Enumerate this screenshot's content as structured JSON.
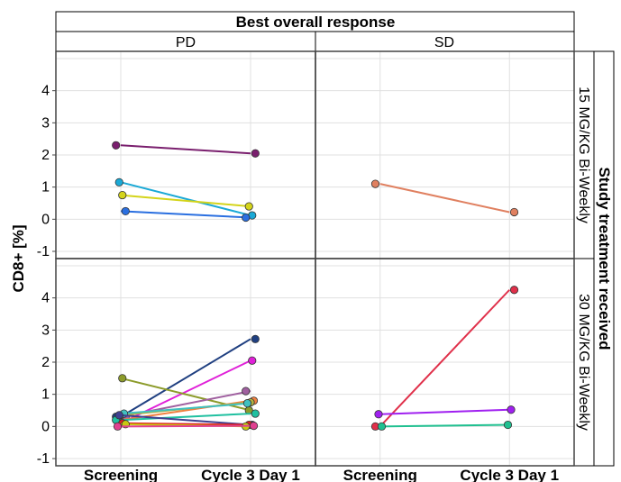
{
  "chart_data": {
    "type": "line",
    "title": "",
    "xlabel": "",
    "ylabel": "CD8+ [%]",
    "categories": [
      "Screening",
      "Cycle 3 Day 1"
    ],
    "ylim": [
      -1,
      5
    ],
    "y_ticks": [
      "-1",
      "0",
      "1",
      "2",
      "3",
      "4"
    ],
    "grid": true,
    "col_facet_title": "Best overall response",
    "col_levels": [
      "PD",
      "SD"
    ],
    "row_facet_title": "Study treatment received",
    "row_levels": [
      "15 MG/KG Bi-Weekly",
      "30 MG/KG Bi-Weekly"
    ],
    "panels": [
      {
        "col": "PD",
        "row": "15 MG/KG Bi-Weekly",
        "subjects": [
          {
            "color": "#7a1f6e",
            "values": [
              2.3,
              2.05
            ]
          },
          {
            "color": "#1aa9d6",
            "values": [
              1.15,
              0.12
            ]
          },
          {
            "color": "#d4d41a",
            "values": [
              0.75,
              0.4
            ]
          },
          {
            "color": "#2a6fe0",
            "values": [
              0.25,
              0.05
            ]
          }
        ]
      },
      {
        "col": "SD",
        "row": "15 MG/KG Bi-Weekly",
        "subjects": [
          {
            "color": "#e08060",
            "values": [
              1.1,
              0.22
            ]
          }
        ]
      },
      {
        "col": "PD",
        "row": "30 MG/KG Bi-Weekly",
        "subjects": [
          {
            "color": "#1f3f80",
            "values": [
              0.3,
              2.72
            ]
          },
          {
            "color": "#e020d8",
            "values": [
              0.1,
              2.05
            ]
          },
          {
            "color": "#8c9b2a",
            "values": [
              1.5,
              0.5
            ]
          },
          {
            "color": "#a060a0",
            "values": [
              0.3,
              1.1
            ]
          },
          {
            "color": "#f08040",
            "values": [
              0.2,
              0.8
            ]
          },
          {
            "color": "#b0b040",
            "values": [
              0.35,
              0.75
            ]
          },
          {
            "color": "#40c0c0",
            "values": [
              0.4,
              0.72
            ]
          },
          {
            "color": "#20c0a0",
            "values": [
              0.2,
              0.4
            ]
          },
          {
            "color": "#404090",
            "values": [
              0.35,
              0.05
            ]
          },
          {
            "color": "#e02020",
            "values": [
              0.1,
              0.05
            ]
          },
          {
            "color": "#c8c810",
            "values": [
              0.07,
              0.0
            ]
          },
          {
            "color": "#e04090",
            "values": [
              0.0,
              0.02
            ]
          }
        ]
      },
      {
        "col": "SD",
        "row": "30 MG/KG Bi-Weekly",
        "subjects": [
          {
            "color": "#e0304a",
            "values": [
              0.0,
              4.25
            ]
          },
          {
            "color": "#a020f0",
            "values": [
              0.38,
              0.52
            ]
          },
          {
            "color": "#20c090",
            "values": [
              0.0,
              0.05
            ]
          }
        ]
      }
    ]
  }
}
